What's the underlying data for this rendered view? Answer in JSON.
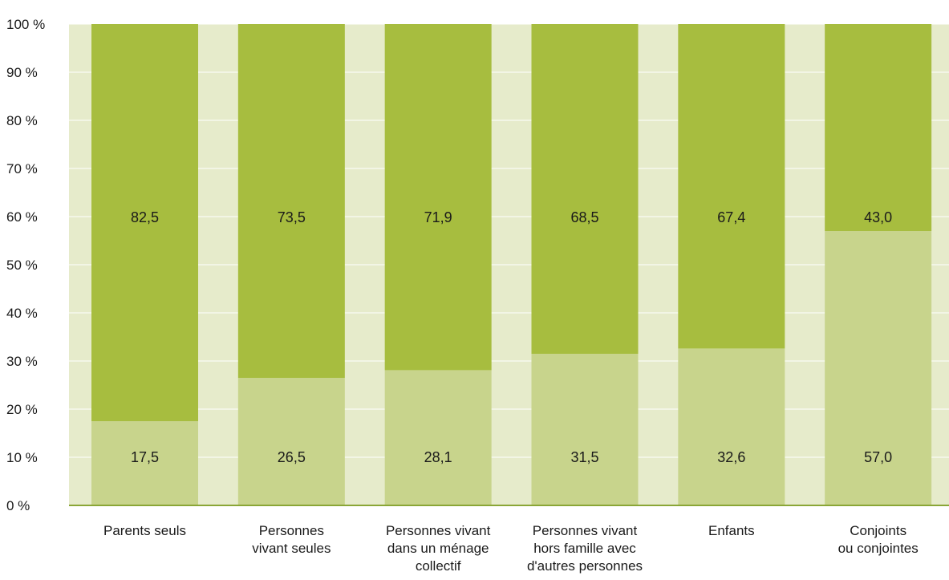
{
  "chart_data": {
    "type": "bar",
    "stacked": true,
    "percent_stacked": true,
    "categories": [
      [
        "Parents seuls"
      ],
      [
        "Personnes",
        "vivant seules"
      ],
      [
        "Personnes vivant",
        "dans un ménage",
        "collectif"
      ],
      [
        "Personnes vivant",
        "hors famille avec",
        "d'autres personnes"
      ],
      [
        "Enfants"
      ],
      [
        "Conjoints",
        "ou conjointes"
      ]
    ],
    "series": [
      {
        "values": [
          17.5,
          26.5,
          28.1,
          31.5,
          32.6,
          57.0
        ],
        "labels": [
          "17,5",
          "26,5",
          "28,1",
          "31,5",
          "32,6",
          "57,0"
        ],
        "color": "#c8d48c"
      },
      {
        "values": [
          82.5,
          73.5,
          71.9,
          68.5,
          67.4,
          43.0
        ],
        "labels": [
          "82,5",
          "73,5",
          "71,9",
          "68,5",
          "67,4",
          "43,0"
        ],
        "color": "#a7bd3f"
      }
    ],
    "ylim": [
      0,
      100
    ],
    "yticks": [
      "0 %",
      "10 %",
      "20 %",
      "30 %",
      "40 %",
      "50 %",
      "60 %",
      "70 %",
      "80 %",
      "90 %",
      "100 %"
    ],
    "plot_background": "#e6ebcb",
    "gridlines": true,
    "axis_color": "#8aa636"
  }
}
